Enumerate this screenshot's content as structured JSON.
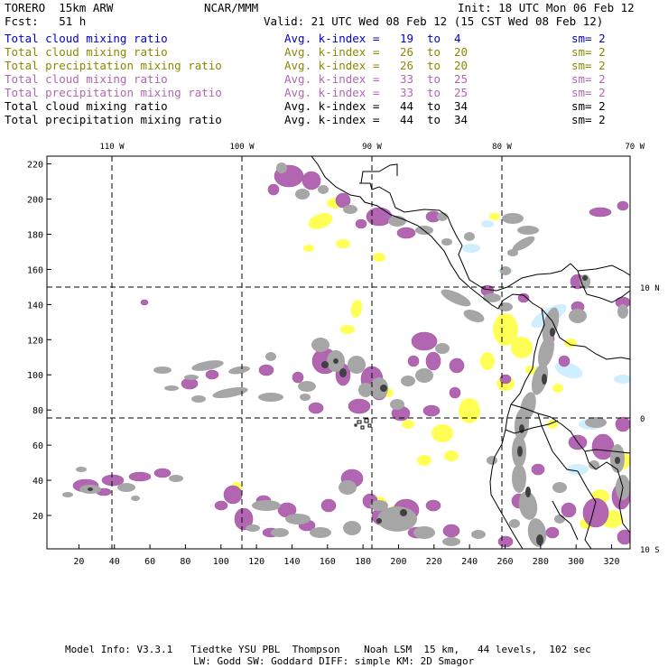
{
  "header": {
    "model": "TORERO  15km ARW",
    "org": "NCAR/MMM",
    "init": "Init: 18 UTC Mon 06 Feb 12",
    "fcst": "Fcst:   51 h",
    "valid": "Valid: 21 UTC Wed 08 Feb 12 (15 CST Wed 08 Feb 12)"
  },
  "legend": {
    "prefix": "Avg. k-index =",
    "to": "to",
    "rows": [
      {
        "field": "Total cloud mixing ratio",
        "from": "19",
        "until": "4",
        "sm": "sm= 2",
        "color": "#0000cc"
      },
      {
        "field": "Total cloud mixing ratio",
        "from": "26",
        "until": "20",
        "sm": "sm= 2",
        "color": "#8a8a00"
      },
      {
        "field": "Total precipitation mixing ratio",
        "from": "26",
        "until": "20",
        "sm": "sm= 2",
        "color": "#8a8a00"
      },
      {
        "field": "Total cloud mixing ratio",
        "from": "33",
        "until": "25",
        "sm": "sm= 2",
        "color": "#b266b2"
      },
      {
        "field": "Total precipitation mixing ratio",
        "from": "33",
        "until": "25",
        "sm": "sm= 2",
        "color": "#b266b2"
      },
      {
        "field": "Total cloud mixing ratio",
        "from": "44",
        "until": "34",
        "sm": "sm= 2",
        "color": "#000000"
      },
      {
        "field": "Total precipitation mixing ratio",
        "from": "44",
        "until": "34",
        "sm": "sm= 2",
        "color": "#000000"
      }
    ]
  },
  "map": {
    "lon_labels": [
      "110 W",
      "100 W",
      "90 W",
      "80 W",
      "70 W"
    ],
    "lat_labels": [
      "10 N",
      "0",
      "10 S"
    ],
    "y_ticks": [
      "220",
      "200",
      "180",
      "160",
      "140",
      "120",
      "100",
      "80",
      "60",
      "40",
      "20"
    ],
    "x_ticks": [
      "20",
      "40",
      "60",
      "80",
      "100",
      "120",
      "140",
      "160",
      "180",
      "200",
      "220",
      "240",
      "260",
      "280",
      "300",
      "320"
    ],
    "colors": {
      "cloud_light": "#cfefff",
      "cloud_yellow": "#ffff55",
      "cloud_purple": "#b266b2",
      "cloud_gray": "#a6a6a6",
      "cloud_dark": "#404040",
      "coast": "#000000"
    }
  },
  "footer": {
    "line1": "Model Info: V3.3.1   Tiedtke YSU PBL  Thompson    Noah LSM  15 km,   44 levels,  102 sec",
    "line2": "LW: Godd SW: Goddard DIFF: simple KM: 2D Smagor"
  }
}
